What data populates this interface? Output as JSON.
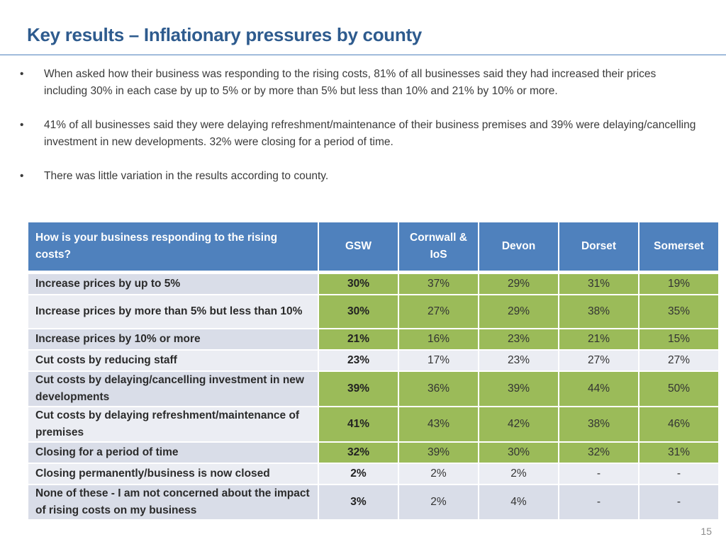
{
  "title": "Key results – Inflationary pressures by county",
  "bullets": [
    "When asked how their business was responding to the rising costs, 81% of all businesses said they had increased their prices including 30% in each case by up to 5% or by more than 5% but less than 10% and 21% by 10% or more.",
    "41% of all businesses said they were delaying refreshment/maintenance of their business premises and 39% were delaying/cancelling investment in new developments.  32% were closing for a period of time.",
    "There was little variation in the results according to county."
  ],
  "bullet_glyph": "•",
  "table": {
    "headers": [
      "How is your business responding to the rising costs?",
      "GSW",
      "Cornwall & IoS",
      "Devon",
      "Dorset",
      "Somerset"
    ],
    "rows": [
      {
        "label": "Increase prices by up to 5%",
        "values": [
          "30%",
          "37%",
          "29%",
          "31%",
          "19%"
        ],
        "highlighted": true
      },
      {
        "label": "Increase prices by more than 5% but less than 10%",
        "values": [
          "30%",
          "27%",
          "29%",
          "38%",
          "35%"
        ],
        "highlighted": true
      },
      {
        "label": "Increase prices by 10% or more",
        "values": [
          "21%",
          "16%",
          "23%",
          "21%",
          "15%"
        ],
        "highlighted": true
      },
      {
        "label": "Cut costs by reducing staff",
        "values": [
          "23%",
          "17%",
          "23%",
          "27%",
          "27%"
        ],
        "highlighted": false
      },
      {
        "label": "Cut costs by delaying/cancelling investment in new developments",
        "values": [
          "39%",
          "36%",
          "39%",
          "44%",
          "50%"
        ],
        "highlighted": true
      },
      {
        "label": "Cut costs by delaying refreshment/maintenance of premises",
        "values": [
          "41%",
          "43%",
          "42%",
          "38%",
          "46%"
        ],
        "highlighted": true
      },
      {
        "label": "Closing for a period of time",
        "values": [
          "32%",
          "39%",
          "30%",
          "32%",
          "31%"
        ],
        "highlighted": true
      },
      {
        "label": "Closing permanently/business is now closed",
        "values": [
          "2%",
          "2%",
          "2%",
          "-",
          "-"
        ],
        "highlighted": false
      },
      {
        "label": "None of these - I am not concerned about the impact of rising costs on my business",
        "values": [
          "3%",
          "2%",
          "4%",
          "-",
          "-"
        ],
        "highlighted": false
      }
    ]
  },
  "colors": {
    "title": "#2e5b8e",
    "header_bg": "#4f81bd",
    "highlight_green": "#9bbb59",
    "row_odd": "#d9dde8",
    "row_even": "#ebedf3"
  },
  "page_number": "15"
}
